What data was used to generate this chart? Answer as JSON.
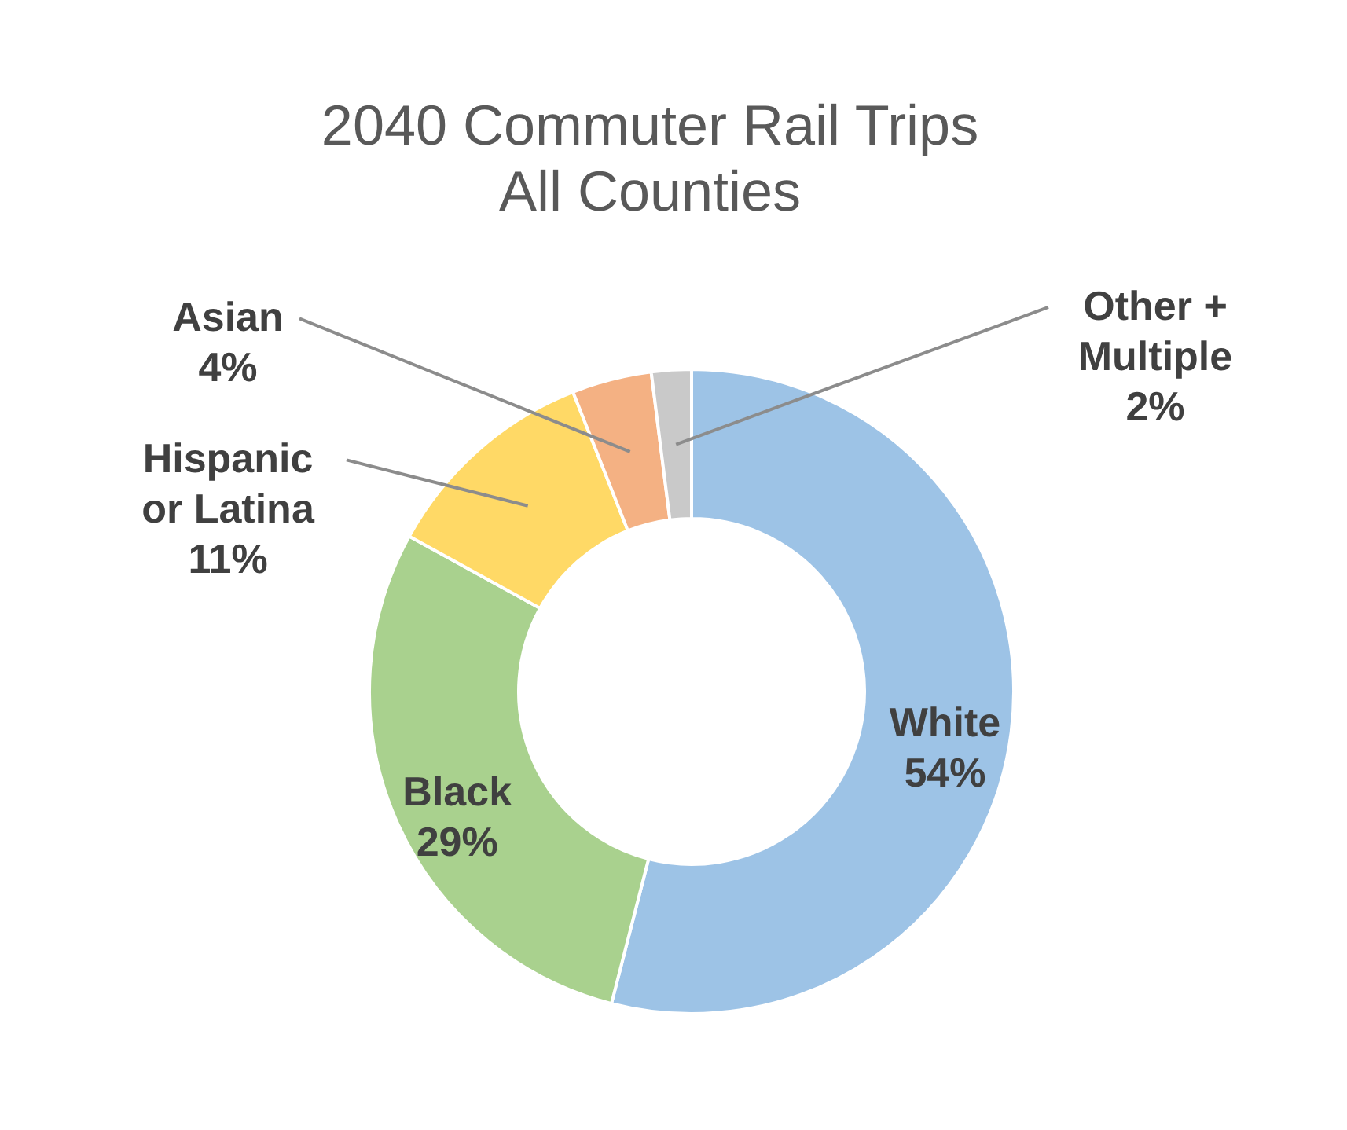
{
  "chart_data": {
    "type": "donut",
    "title": "2040 Commuter Rail Trips",
    "subtitle": "All Counties",
    "categories": [
      "White",
      "Black",
      "Hispanic or Latina",
      "Asian",
      "Other + Multiple"
    ],
    "values": [
      54,
      29,
      11,
      4,
      2
    ],
    "value_labels": [
      "54%",
      "29%",
      "11%",
      "4%",
      "2%"
    ],
    "colors": [
      "#9dc3e6",
      "#a9d18e",
      "#ffd966",
      "#f4b183",
      "#c9c9c9"
    ]
  }
}
